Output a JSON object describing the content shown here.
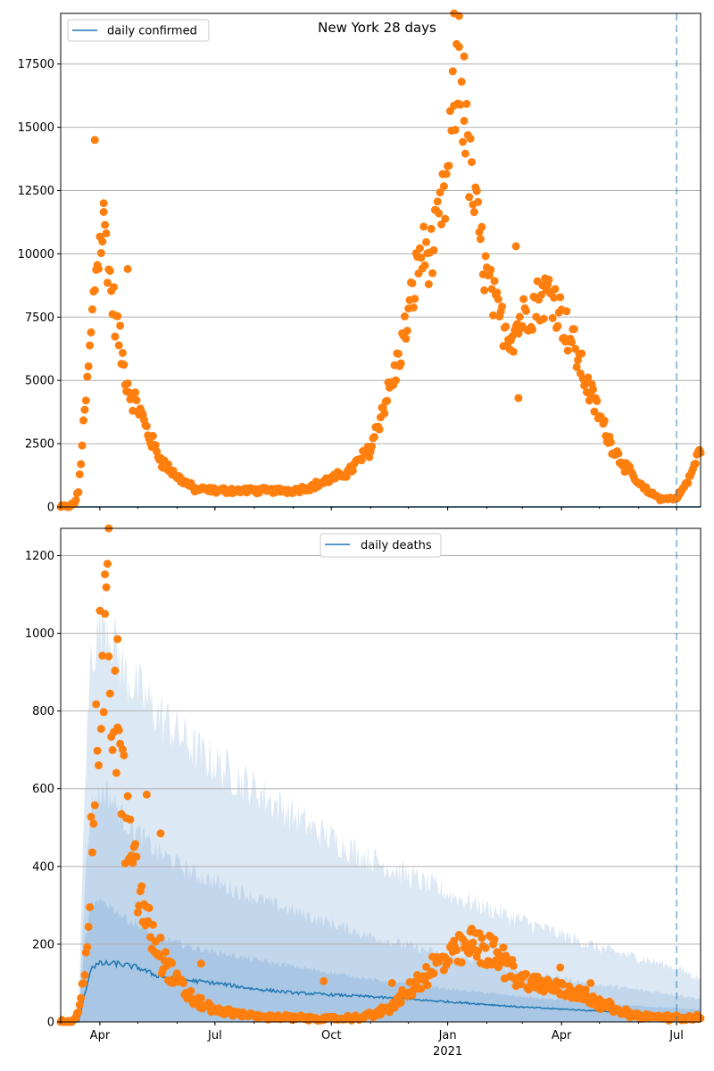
{
  "chart_data": [
    {
      "type": "scatter",
      "title": "New York 28 days",
      "legend": {
        "label": "daily confirmed",
        "placement": "top-left"
      },
      "ylim": [
        0,
        19500
      ],
      "yticks": [
        0,
        2500,
        5000,
        7500,
        10000,
        12500,
        15000,
        17500
      ],
      "ytick_labels": [
        "0",
        "2500",
        "5000",
        "7500",
        "10000",
        "12500",
        "15000",
        "17500"
      ],
      "xlim": [
        "2020-03-01",
        "2021-07-20"
      ],
      "vline": "2021-07-01",
      "colors": {
        "line": "#1f77b4",
        "points": "#ff7f0e",
        "vline": "#1f77b4"
      },
      "line_series": {
        "name": "daily confirmed",
        "values_constant": 0
      },
      "scatter_anchors": [
        [
          "2020-03-01",
          0
        ],
        [
          "2020-03-08",
          30
        ],
        [
          "2020-03-12",
          150
        ],
        [
          "2020-03-15",
          600
        ],
        [
          "2020-03-18",
          2500
        ],
        [
          "2020-03-22",
          4800
        ],
        [
          "2020-03-25",
          6800
        ],
        [
          "2020-03-29",
          9500
        ],
        [
          "2020-04-02",
          10600
        ],
        [
          "2020-04-05",
          11000
        ],
        [
          "2020-04-10",
          8500
        ],
        [
          "2020-04-15",
          7000
        ],
        [
          "2020-04-20",
          5500
        ],
        [
          "2020-04-25",
          4500
        ],
        [
          "2020-05-01",
          4000
        ],
        [
          "2020-05-10",
          2800
        ],
        [
          "2020-05-20",
          1800
        ],
        [
          "2020-06-01",
          1200
        ],
        [
          "2020-06-15",
          700
        ],
        [
          "2020-07-01",
          650
        ],
        [
          "2020-08-01",
          650
        ],
        [
          "2020-09-01",
          650
        ],
        [
          "2020-09-15",
          800
        ],
        [
          "2020-10-01",
          1100
        ],
        [
          "2020-10-15",
          1400
        ],
        [
          "2020-11-01",
          2300
        ],
        [
          "2020-11-10",
          3800
        ],
        [
          "2020-11-20",
          5200
        ],
        [
          "2020-12-01",
          7500
        ],
        [
          "2020-12-10",
          10000
        ],
        [
          "2020-12-20",
          10000
        ],
        [
          "2020-12-31",
          12500
        ],
        [
          "2021-01-06",
          16000
        ],
        [
          "2021-01-10",
          17200
        ],
        [
          "2021-01-13",
          16000
        ],
        [
          "2021-01-18",
          13500
        ],
        [
          "2021-01-25",
          11000
        ],
        [
          "2021-02-01",
          9000
        ],
        [
          "2021-02-10",
          7500
        ],
        [
          "2021-02-20",
          6800
        ],
        [
          "2021-03-01",
          7500
        ],
        [
          "2021-03-15",
          8300
        ],
        [
          "2021-03-25",
          8500
        ],
        [
          "2021-04-01",
          7500
        ],
        [
          "2021-04-10",
          6500
        ],
        [
          "2021-04-20",
          5000
        ],
        [
          "2021-05-01",
          3600
        ],
        [
          "2021-05-10",
          2500
        ],
        [
          "2021-05-20",
          1700
        ],
        [
          "2021-06-01",
          900
        ],
        [
          "2021-06-10",
          550
        ],
        [
          "2021-06-20",
          300
        ],
        [
          "2021-07-01",
          350
        ],
        [
          "2021-07-10",
          1000
        ],
        [
          "2021-07-20",
          2300
        ]
      ],
      "scatter_outliers": [
        [
          "2020-03-28",
          14500
        ],
        [
          "2020-04-04",
          12000
        ],
        [
          "2020-04-23",
          9400
        ],
        [
          "2021-01-06",
          19500
        ],
        [
          "2021-01-10",
          19400
        ],
        [
          "2021-01-14",
          17800
        ],
        [
          "2021-02-24",
          10300
        ],
        [
          "2021-02-26",
          4300
        ]
      ]
    },
    {
      "type": "scatter",
      "title": "",
      "legend": {
        "label": "daily deaths",
        "placement": "top-center"
      },
      "ylim": [
        0,
        1270
      ],
      "yticks": [
        0,
        200,
        400,
        600,
        800,
        1000,
        1200
      ],
      "ytick_labels": [
        "0",
        "200",
        "400",
        "600",
        "800",
        "1000",
        "1200"
      ],
      "xticks": [
        "2020-04-01",
        "2020-07-01",
        "2020-10-01",
        "2021-01-01",
        "2021-04-01",
        "2021-07-01"
      ],
      "xtick_labels": [
        "Apr",
        "Jul",
        "Oct",
        "Jan",
        "Apr",
        "Jul"
      ],
      "year_label": "2021",
      "xlim": [
        "2020-03-01",
        "2021-07-20"
      ],
      "vline": "2021-07-01",
      "colors": {
        "line": "#1f77b4",
        "points": "#ff7f0e",
        "band_outer": "#dce8f4",
        "band_inner": "#c2d7ec",
        "band_core": "#a9c7e4",
        "vline": "#1f77b4"
      },
      "line_series": {
        "name": "daily deaths",
        "anchors": [
          [
            "2020-03-01",
            0
          ],
          [
            "2020-03-15",
            0
          ],
          [
            "2020-03-20",
            70
          ],
          [
            "2020-03-25",
            140
          ],
          [
            "2020-04-01",
            150
          ],
          [
            "2020-04-15",
            150
          ],
          [
            "2020-05-01",
            140
          ],
          [
            "2020-05-15",
            120
          ],
          [
            "2020-06-01",
            110
          ],
          [
            "2020-07-01",
            100
          ],
          [
            "2020-08-01",
            85
          ],
          [
            "2020-09-01",
            75
          ],
          [
            "2020-10-01",
            70
          ],
          [
            "2020-11-01",
            65
          ],
          [
            "2020-12-01",
            58
          ],
          [
            "2021-01-01",
            52
          ],
          [
            "2021-02-01",
            45
          ],
          [
            "2021-03-01",
            38
          ],
          [
            "2021-04-01",
            33
          ],
          [
            "2021-05-01",
            28
          ],
          [
            "2021-06-01",
            23
          ],
          [
            "2021-07-01",
            18
          ],
          [
            "2021-07-20",
            18
          ]
        ]
      },
      "band_outer_upper": [
        [
          "2020-03-01",
          0
        ],
        [
          "2020-03-15",
          0
        ],
        [
          "2020-03-20",
          600
        ],
        [
          "2020-03-25",
          950
        ],
        [
          "2020-04-05",
          1050
        ],
        [
          "2020-04-20",
          900
        ],
        [
          "2020-05-15",
          800
        ],
        [
          "2020-06-15",
          700
        ],
        [
          "2020-08-01",
          600
        ],
        [
          "2020-09-15",
          500
        ],
        [
          "2020-11-01",
          420
        ],
        [
          "2021-01-01",
          330
        ],
        [
          "2021-03-01",
          260
        ],
        [
          "2021-05-01",
          190
        ],
        [
          "2021-07-01",
          140
        ],
        [
          "2021-07-20",
          110
        ]
      ],
      "band_inner_upper": [
        [
          "2020-03-01",
          0
        ],
        [
          "2020-03-15",
          0
        ],
        [
          "2020-03-20",
          350
        ],
        [
          "2020-03-25",
          550
        ],
        [
          "2020-04-05",
          600
        ],
        [
          "2020-04-20",
          520
        ],
        [
          "2020-05-15",
          440
        ],
        [
          "2020-06-15",
          380
        ],
        [
          "2020-08-01",
          320
        ],
        [
          "2020-09-15",
          270
        ],
        [
          "2020-11-01",
          220
        ],
        [
          "2021-01-01",
          170
        ],
        [
          "2021-03-01",
          130
        ],
        [
          "2021-05-01",
          95
        ],
        [
          "2021-07-01",
          70
        ],
        [
          "2021-07-20",
          60
        ]
      ],
      "band_core_upper": [
        [
          "2020-03-01",
          0
        ],
        [
          "2020-03-15",
          0
        ],
        [
          "2020-03-20",
          200
        ],
        [
          "2020-03-25",
          300
        ],
        [
          "2020-04-05",
          310
        ],
        [
          "2020-04-20",
          270
        ],
        [
          "2020-05-15",
          220
        ],
        [
          "2020-06-15",
          190
        ],
        [
          "2020-08-01",
          160
        ],
        [
          "2020-09-15",
          135
        ],
        [
          "2020-11-01",
          110
        ],
        [
          "2021-01-01",
          85
        ],
        [
          "2021-03-01",
          65
        ],
        [
          "2021-05-01",
          48
        ],
        [
          "2021-07-01",
          35
        ],
        [
          "2021-07-20",
          32
        ]
      ],
      "scatter_anchors": [
        [
          "2020-03-01",
          0
        ],
        [
          "2020-03-12",
          5
        ],
        [
          "2020-03-16",
          40
        ],
        [
          "2020-03-20",
          150
        ],
        [
          "2020-03-24",
          350
        ],
        [
          "2020-03-28",
          650
        ],
        [
          "2020-04-02",
          900
        ],
        [
          "2020-04-06",
          980
        ],
        [
          "2020-04-10",
          900
        ],
        [
          "2020-04-15",
          700
        ],
        [
          "2020-04-20",
          560
        ],
        [
          "2020-04-25",
          440
        ],
        [
          "2020-05-01",
          340
        ],
        [
          "2020-05-10",
          240
        ],
        [
          "2020-05-20",
          170
        ],
        [
          "2020-06-01",
          100
        ],
        [
          "2020-06-15",
          55
        ],
        [
          "2020-07-01",
          30
        ],
        [
          "2020-08-01",
          15
        ],
        [
          "2020-09-01",
          10
        ],
        [
          "2020-10-01",
          8
        ],
        [
          "2020-10-20",
          10
        ],
        [
          "2020-11-05",
          20
        ],
        [
          "2020-11-20",
          45
        ],
        [
          "2020-12-05",
          90
        ],
        [
          "2020-12-20",
          140
        ],
        [
          "2021-01-05",
          170
        ],
        [
          "2021-01-20",
          195
        ],
        [
          "2021-02-01",
          190
        ],
        [
          "2021-02-15",
          150
        ],
        [
          "2021-03-01",
          110
        ],
        [
          "2021-03-15",
          95
        ],
        [
          "2021-04-01",
          85
        ],
        [
          "2021-04-15",
          75
        ],
        [
          "2021-05-01",
          50
        ],
        [
          "2021-05-15",
          30
        ],
        [
          "2021-06-01",
          15
        ],
        [
          "2021-07-01",
          10
        ],
        [
          "2021-07-20",
          12
        ]
      ],
      "scatter_outliers": [
        [
          "2020-04-08",
          1270
        ],
        [
          "2020-04-05",
          1050
        ],
        [
          "2020-04-15",
          985
        ],
        [
          "2020-05-19",
          485
        ],
        [
          "2020-05-08",
          585
        ],
        [
          "2020-06-20",
          150
        ],
        [
          "2020-09-25",
          105
        ],
        [
          "2020-11-18",
          100
        ],
        [
          "2021-01-20",
          240
        ],
        [
          "2021-03-31",
          140
        ],
        [
          "2021-04-24",
          100
        ]
      ]
    }
  ]
}
